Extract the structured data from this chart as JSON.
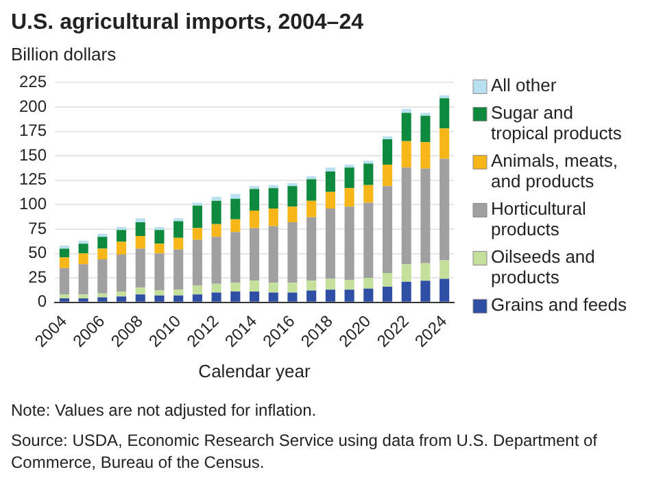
{
  "chart_data": {
    "type": "bar",
    "title": "U.S. agricultural imports, 2004–24",
    "ylabel": "Billion dollars",
    "xlabel": "Calendar year",
    "categories": [
      "2004",
      null,
      "2006",
      null,
      "2008",
      null,
      "2010",
      null,
      "2012",
      null,
      "2014",
      null,
      "2016",
      null,
      "2018",
      null,
      "2020",
      null,
      "2022",
      null,
      "2024"
    ],
    "stacked": true,
    "ylim": [
      0,
      225
    ],
    "yticks": [
      0,
      25,
      50,
      75,
      100,
      125,
      150,
      175,
      200,
      225
    ],
    "grid": "y",
    "legend": "right",
    "series": [
      {
        "name": "Grains and feeds",
        "color": "#2e4fa3",
        "values": [
          4,
          4,
          5,
          6,
          8,
          7,
          7,
          8,
          10,
          11,
          11,
          10,
          10,
          12,
          13,
          13,
          14,
          16,
          21,
          22,
          24
        ]
      },
      {
        "name": "Oilseeds and products",
        "color": "#c5e09a",
        "values": [
          4,
          4,
          4,
          5,
          7,
          5,
          6,
          9,
          9,
          9,
          11,
          10,
          10,
          10,
          11,
          10,
          11,
          14,
          18,
          18,
          19
        ]
      },
      {
        "name": "Horticultural products",
        "color": "#a0a0a0",
        "values": [
          27,
          31,
          35,
          38,
          40,
          38,
          41,
          47,
          48,
          52,
          54,
          58,
          62,
          65,
          72,
          75,
          77,
          89,
          99,
          97,
          104
        ]
      },
      {
        "name": "Animals, meats, and products",
        "color": "#f7b718",
        "values": [
          11,
          11,
          11,
          13,
          13,
          10,
          12,
          12,
          13,
          13,
          18,
          18,
          16,
          17,
          17,
          19,
          18,
          22,
          27,
          27,
          31
        ]
      },
      {
        "name": "Sugar and tropical products",
        "color": "#0e8a3e",
        "values": [
          9,
          10,
          12,
          12,
          14,
          14,
          17,
          23,
          24,
          21,
          22,
          21,
          21,
          22,
          21,
          21,
          22,
          26,
          29,
          27,
          31
        ]
      },
      {
        "name": "All other",
        "color": "#b8e0ef",
        "values": [
          3,
          3,
          3,
          3,
          4,
          3,
          3,
          3,
          4,
          5,
          3,
          3,
          3,
          3,
          4,
          3,
          3,
          3,
          4,
          3,
          3
        ]
      }
    ],
    "annotations": [
      "Note: Values are not adjusted for inflation.",
      "Source: USDA, Economic Research Service using data from U.S. Department of Commerce, Bureau of the Census."
    ]
  }
}
